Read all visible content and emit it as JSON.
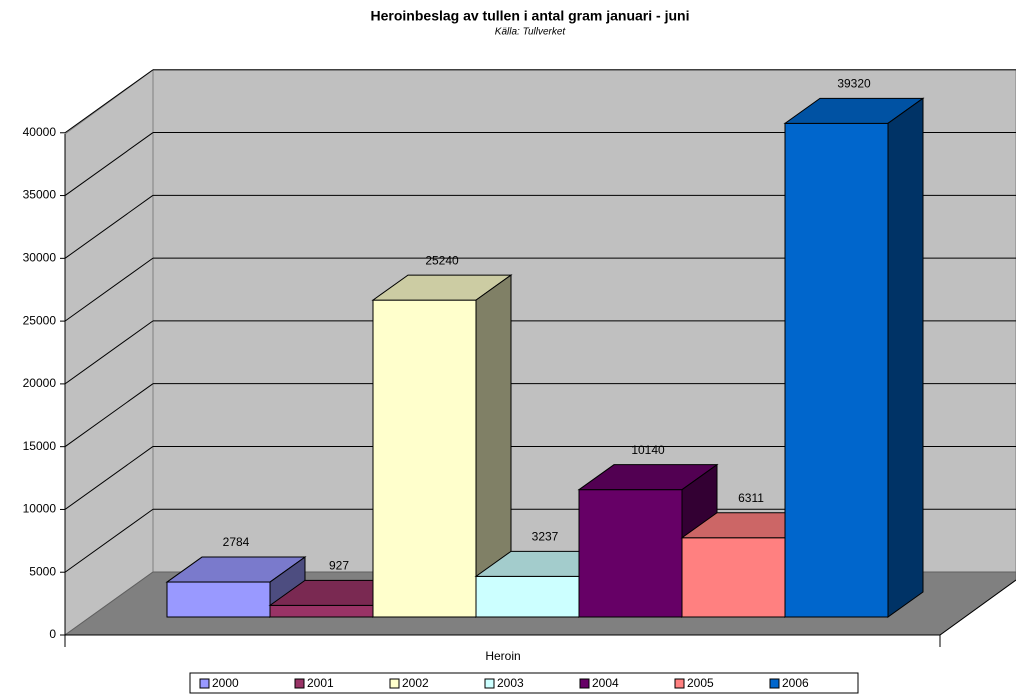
{
  "chart_data": {
    "type": "bar3d",
    "title": "Heroinbeslag av tullen i antal gram januari - juni",
    "subtitle": "Källa: Tullverket",
    "categories": [
      "Heroin"
    ],
    "series": [
      {
        "name": "2000",
        "color": "#9999ff",
        "values": [
          2784
        ]
      },
      {
        "name": "2001",
        "color": "#993366",
        "values": [
          927
        ]
      },
      {
        "name": "2002",
        "color": "#ffffcc",
        "values": [
          25240
        ]
      },
      {
        "name": "2003",
        "color": "#ccffff",
        "values": [
          3237
        ]
      },
      {
        "name": "2004",
        "color": "#660066",
        "values": [
          10140
        ]
      },
      {
        "name": "2005",
        "color": "#ff8080",
        "values": [
          6311
        ]
      },
      {
        "name": "2006",
        "color": "#0066cc",
        "values": [
          39320
        ]
      }
    ],
    "ylim": [
      0,
      45000
    ],
    "yticks": [
      0,
      5000,
      10000,
      15000,
      20000,
      25000,
      30000,
      35000,
      40000
    ],
    "grid": true,
    "legend": "bottom"
  }
}
